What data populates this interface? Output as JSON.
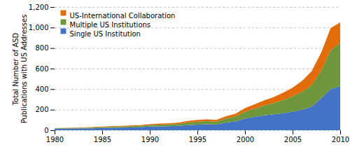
{
  "chart_data": {
    "type": "area",
    "stacked": true,
    "x": [
      1980,
      1981,
      1982,
      1983,
      1984,
      1985,
      1986,
      1987,
      1988,
      1989,
      1990,
      1991,
      1992,
      1993,
      1994,
      1995,
      1996,
      1997,
      1998,
      1999,
      2000,
      2001,
      2002,
      2003,
      2004,
      2005,
      2006,
      2007,
      2008,
      2009,
      2010
    ],
    "series": [
      {
        "name": "Single US Institution",
        "color": "#4472C4",
        "values": [
          15,
          16,
          17,
          18,
          19,
          22,
          24,
          26,
          28,
          30,
          35,
          38,
          40,
          42,
          50,
          55,
          58,
          55,
          75,
          85,
          115,
          130,
          145,
          155,
          165,
          180,
          200,
          230,
          310,
          400,
          430
        ]
      },
      {
        "name": "Multiple US Institutions",
        "color": "#70963C",
        "values": [
          4,
          5,
          5,
          6,
          7,
          9,
          10,
          11,
          12,
          13,
          16,
          17,
          18,
          20,
          25,
          28,
          30,
          28,
          40,
          50,
          65,
          80,
          95,
          110,
          130,
          150,
          175,
          210,
          270,
          380,
          420
        ]
      },
      {
        "name": "US-International Collaboration",
        "color": "#E36C0A",
        "values": [
          2,
          2,
          3,
          3,
          4,
          4,
          5,
          5,
          6,
          7,
          8,
          9,
          10,
          12,
          15,
          18,
          18,
          18,
          22,
          25,
          35,
          42,
          50,
          58,
          70,
          85,
          105,
          135,
          175,
          215,
          200
        ]
      }
    ],
    "ylabel": "Total Number of ASD\nPublications with US Addresses",
    "xlim": [
      1980,
      2010
    ],
    "xticks": [
      1980,
      1985,
      1990,
      1995,
      2000,
      2005,
      2010
    ],
    "ylim": [
      0,
      1200
    ],
    "yticks": [
      0,
      200,
      400,
      600,
      800,
      {
        "value": 1000,
        "label": "1,000"
      },
      {
        "value": 1200,
        "label": "1,200"
      }
    ],
    "grid": true,
    "legend": "upper left"
  }
}
